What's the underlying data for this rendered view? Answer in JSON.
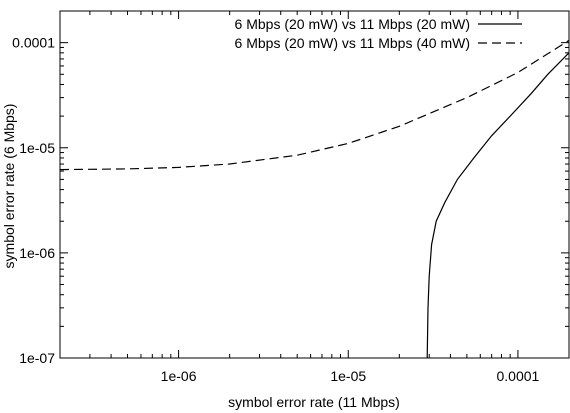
{
  "chart_data": {
    "type": "line",
    "title": "",
    "xlabel": "symbol error rate (11 Mbps)",
    "ylabel": "symbol error rate (6 Mbps)",
    "xscale": "log",
    "yscale": "log",
    "xlim": [
      2e-07,
      0.0002
    ],
    "ylim": [
      1e-07,
      0.0002
    ],
    "grid": false,
    "legend_position": "top-right",
    "x_ticks": [
      {
        "value": 1e-06,
        "label": "1e-06"
      },
      {
        "value": 1e-05,
        "label": "1e-05"
      },
      {
        "value": 0.0001,
        "label": "0.0001"
      }
    ],
    "y_ticks": [
      {
        "value": 1e-07,
        "label": "1e-07"
      },
      {
        "value": 1e-06,
        "label": "1e-06"
      },
      {
        "value": 1e-05,
        "label": "1e-05"
      },
      {
        "value": 0.0001,
        "label": "0.0001"
      }
    ],
    "series": [
      {
        "name": "6 Mbps (20 mW) vs 11 Mbps (20 mW)",
        "style": "solid",
        "color": "#000000",
        "points": [
          [
            2.92e-05,
            1e-07
          ],
          [
            2.95e-05,
            3e-07
          ],
          [
            3e-05,
            6e-07
          ],
          [
            3.1e-05,
            1.2e-06
          ],
          [
            3.3e-05,
            2e-06
          ],
          [
            3.7e-05,
            3e-06
          ],
          [
            4.4e-05,
            5e-06
          ],
          [
            5.5e-05,
            8e-06
          ],
          [
            7e-05,
            1.3e-05
          ],
          [
            9e-05,
            2e-05
          ],
          [
            0.00012,
            3.3e-05
          ],
          [
            0.00015,
            5e-05
          ],
          [
            0.0002,
            8e-05
          ]
        ]
      },
      {
        "name": "6 Mbps (20 mW) vs 11 Mbps (40 mW)",
        "style": "dashed",
        "color": "#000000",
        "points": [
          [
            2e-07,
            6.2e-06
          ],
          [
            5e-07,
            6.3e-06
          ],
          [
            1e-06,
            6.5e-06
          ],
          [
            2e-06,
            7e-06
          ],
          [
            5e-06,
            8.5e-06
          ],
          [
            1e-05,
            1.1e-05
          ],
          [
            2e-05,
            1.6e-05
          ],
          [
            5e-05,
            3e-05
          ],
          [
            0.0001,
            5.2e-05
          ],
          [
            0.0002,
            0.000105
          ]
        ]
      }
    ]
  }
}
